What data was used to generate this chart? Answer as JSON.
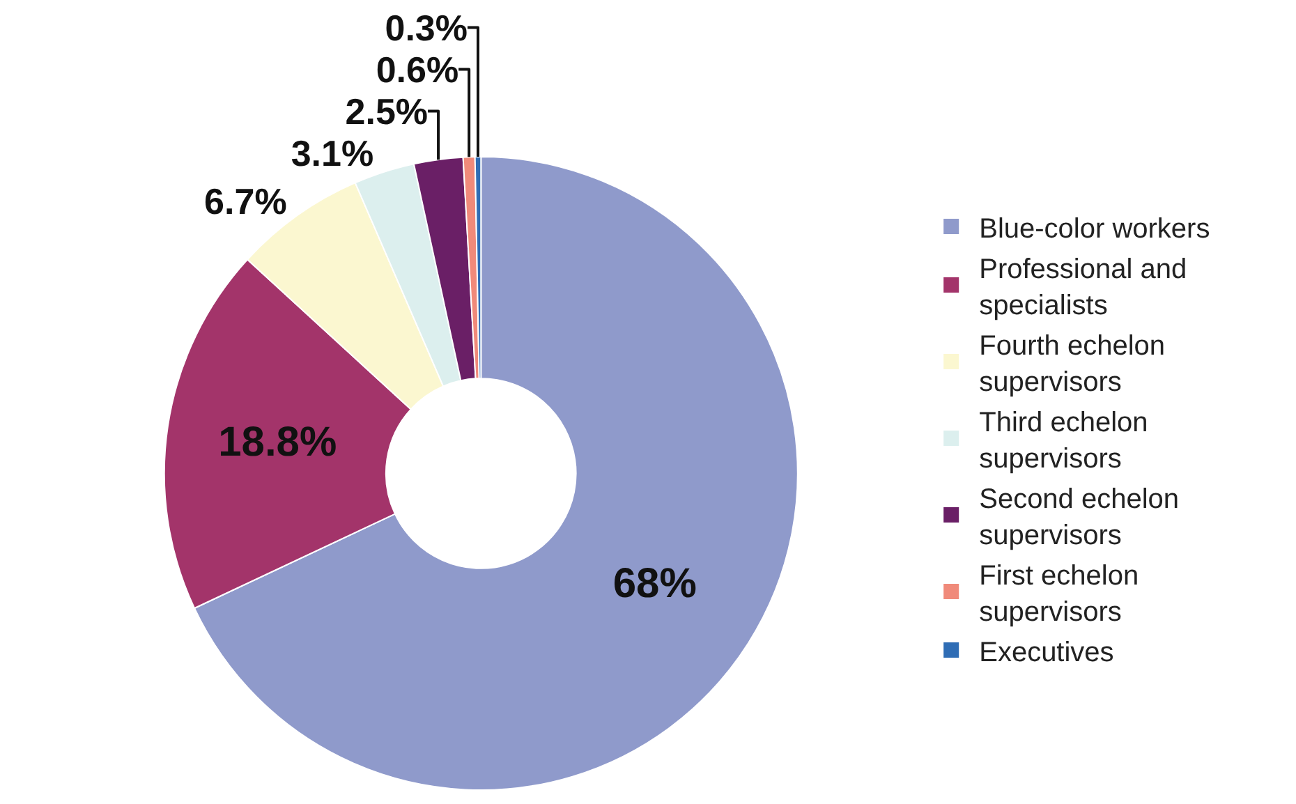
{
  "chart_data": {
    "type": "donut",
    "categories": [
      "Blue-color workers",
      "Professional and specialists",
      "Fourth echelon supervisors",
      "Third echelon supervisors",
      "Second echelon supervisors",
      "First echelon supervisors",
      "Executives"
    ],
    "values": [
      68,
      18.8,
      6.7,
      3.1,
      2.5,
      0.6,
      0.3
    ],
    "colors": [
      "#8f9acb",
      "#a3346a",
      "#fbf7d0",
      "#dcefee",
      "#6a1f66",
      "#f08a7a",
      "#2f6db5"
    ],
    "value_labels": [
      "68%",
      "18.8%",
      "6.7%",
      "3.1%",
      "2.5%",
      "0.6%",
      "0.3%"
    ],
    "legend": "right"
  }
}
